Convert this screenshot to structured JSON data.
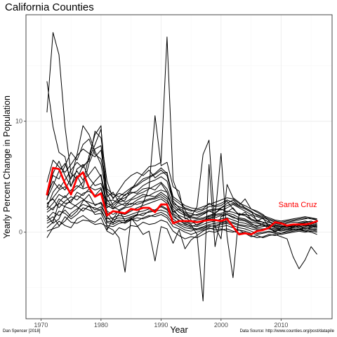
{
  "chart_data": {
    "type": "line",
    "title": "California Counties",
    "xlabel": "Year",
    "ylabel": "Yearly Percent Change in Population",
    "xlim": [
      1967.5,
      2018.5
    ],
    "ylim": [
      -7.8,
      19.6
    ],
    "x_ticks": [
      1970,
      1980,
      1990,
      2000,
      2010
    ],
    "y_ticks": [
      0,
      10
    ],
    "y_tick_labels": [
      "0",
      "10"
    ],
    "grid": true,
    "legend": "none",
    "highlight_color": "#ff0000",
    "other_color": "#000000",
    "highlight": {
      "name": "Santa Cruz",
      "x": [
        1971,
        1972,
        1973,
        1974,
        1975,
        1976,
        1977,
        1978,
        1979,
        1980,
        1981,
        1982,
        1983,
        1984,
        1985,
        1986,
        1987,
        1988,
        1989,
        1990,
        1991,
        1992,
        1993,
        1994,
        1995,
        1996,
        1997,
        1998,
        1999,
        2000,
        2001,
        2002,
        2003,
        2004,
        2005,
        2006,
        2007,
        2008,
        2009,
        2010,
        2011,
        2012,
        2013,
        2014,
        2015,
        2016
      ],
      "values": [
        3.4,
        5.8,
        5.7,
        4.4,
        3.4,
        4.9,
        5.4,
        4.0,
        3.2,
        3.5,
        1.5,
        1.9,
        1.8,
        1.7,
        2.1,
        2.0,
        2.2,
        2.2,
        1.8,
        2.5,
        2.5,
        0.8,
        1.0,
        1.0,
        1.0,
        0.9,
        1.0,
        1.1,
        1.1,
        1.0,
        1.2,
        0.5,
        -0.2,
        -0.1,
        -0.2,
        0.1,
        0.2,
        0.4,
        0.9,
        0.8,
        0.6,
        0.7,
        0.7,
        0.7,
        0.8,
        1.0
      ]
    },
    "series": [
      {
        "values": [
          13.6,
          9.5,
          7.2,
          6.8,
          4.2,
          5.1,
          4.0,
          6.2,
          7.5,
          7.8,
          3.0,
          2.1,
          2.8,
          3.4,
          3.6,
          3.5,
          3.9,
          4.0,
          3.8,
          4.4,
          3.6,
          1.8,
          2.1,
          1.6,
          1.4,
          1.3,
          1.6,
          1.9,
          1.7,
          2.1,
          1.8,
          2.2,
          1.5,
          1.8,
          1.2,
          1.0,
          0.9,
          0.7,
          0.6,
          0.5,
          0.6,
          0.5,
          0.7,
          0.9,
          0.8,
          0.7
        ]
      },
      {
        "values": [
          10.8,
          18.0,
          16.0,
          9.5,
          5.3,
          4.8,
          6.0,
          6.4,
          9.1,
          8.5,
          4.6,
          3.0,
          3.8,
          4.6,
          5.1,
          5.4,
          5.1,
          5.6,
          4.9,
          5.3,
          5.4,
          2.6,
          2.3,
          2.1,
          1.9,
          2.0,
          2.1,
          2.6,
          2.3,
          2.4,
          2.8,
          2.1,
          1.6,
          1.6,
          1.5,
          1.1,
          0.9,
          0.7,
          0.4,
          0.2,
          0.3,
          0.3,
          0.2,
          0.4,
          0.4,
          0.6
        ]
      },
      {
        "values": [
          3.0,
          4.2,
          5.5,
          6.2,
          4.8,
          7.0,
          9.6,
          8.8,
          7.3,
          6.1,
          3.2,
          3.6,
          2.7,
          2.9,
          3.8,
          4.6,
          5.3,
          5.9,
          6.0,
          6.3,
          17.6,
          4.7,
          3.2,
          2.0,
          1.1,
          0.6,
          0.9,
          1.5,
          1.7,
          2.2,
          2.6,
          2.9,
          2.4,
          3.0,
          2.1,
          1.9,
          1.6,
          1.0,
          0.5,
          0.4,
          0.6,
          0.7,
          0.8,
          0.9,
          1.0,
          0.8
        ]
      },
      {
        "values": [
          2.5,
          3.1,
          3.8,
          4.1,
          3.5,
          4.0,
          4.5,
          6.9,
          8.8,
          9.6,
          0.2,
          1.2,
          2.0,
          1.0,
          1.1,
          1.6,
          2.6,
          4.0,
          10.5,
          6.0,
          6.3,
          4.1,
          3.7,
          1.2,
          1.4,
          2.3,
          7.0,
          8.3,
          0.5,
          -0.6,
          4.3,
          3.1,
          2.7,
          2.2,
          1.9,
          1.0,
          1.3,
          0.4,
          0.0,
          0.4,
          0.5,
          0.4,
          0.6,
          0.3,
          0.5,
          0.4
        ]
      },
      {
        "values": [
          2.0,
          2.6,
          3.4,
          3.1,
          3.8,
          4.2,
          3.9,
          4.1,
          3.8,
          4.0,
          2.4,
          2.1,
          2.4,
          2.6,
          2.5,
          2.9,
          3.2,
          3.3,
          3.6,
          3.8,
          3.6,
          2.1,
          1.4,
          0.9,
          0.7,
          -0.2,
          -6.2,
          6.1,
          -1.3,
          1.4,
          1.6,
          1.3,
          1.2,
          1.1,
          0.8,
          0.5,
          0.8,
          0.9,
          0.7,
          0.6,
          0.5,
          0.5,
          0.7,
          0.6,
          0.6,
          0.5
        ]
      },
      {
        "values": [
          1.2,
          1.8,
          1.5,
          2.0,
          1.4,
          1.9,
          2.8,
          3.4,
          2.4,
          2.7,
          1.8,
          1.1,
          1.3,
          1.2,
          1.4,
          1.6,
          1.5,
          1.9,
          2.0,
          2.4,
          2.1,
          1.6,
          1.0,
          0.8,
          0.5,
          0.7,
          0.9,
          1.3,
          1.4,
          7.1,
          -0.4,
          -4.1,
          1.7,
          1.5,
          1.1,
          0.9,
          0.7,
          0.3,
          0.1,
          0.2,
          0.3,
          0.2,
          0.3,
          0.1,
          0.0,
          -0.2
        ]
      },
      {
        "values": [
          0.1,
          0.3,
          0.5,
          1.4,
          0.9,
          0.8,
          1.1,
          1.0,
          0.7,
          0.8,
          0.5,
          0.2,
          -0.5,
          -3.6,
          1.3,
          0.6,
          -0.2,
          0.1,
          -2.6,
          0.5,
          0.3,
          -1.0,
          0.2,
          -1.5,
          -0.7,
          -0.3,
          0.1,
          0.4,
          0.2,
          0.3,
          0.1,
          0.0,
          0.2,
          -0.1,
          -0.4,
          -0.3,
          -0.5,
          -0.3,
          -0.2,
          -0.4,
          -0.6,
          -2.2,
          -3.3,
          -2.5,
          -1.3,
          -2.0
        ]
      },
      {
        "values": [
          2.9,
          5.3,
          6.4,
          5.1,
          4.1,
          5.7,
          6.1,
          4.9,
          4.2,
          4.4,
          2.8,
          2.9,
          2.6,
          2.4,
          2.9,
          3.1,
          3.4,
          3.3,
          3.2,
          3.6,
          3.2,
          2.3,
          1.8,
          1.5,
          1.3,
          1.2,
          1.3,
          1.5,
          1.6,
          1.7,
          1.9,
          1.8,
          1.6,
          1.5,
          1.2,
          1.0,
          0.9,
          0.7,
          0.6,
          0.5,
          0.5,
          0.6,
          0.7,
          0.8,
          0.7,
          0.6
        ]
      },
      {
        "values": [
          1.8,
          2.2,
          2.6,
          2.3,
          2.1,
          2.5,
          2.9,
          2.7,
          2.5,
          2.6,
          1.2,
          1.3,
          1.5,
          1.4,
          1.6,
          1.8,
          1.9,
          2.1,
          2.0,
          2.3,
          2.0,
          1.2,
          0.8,
          0.6,
          0.4,
          0.3,
          0.5,
          0.7,
          0.8,
          0.9,
          1.0,
          0.9,
          0.7,
          0.6,
          0.5,
          0.3,
          0.3,
          0.4,
          0.3,
          0.2,
          0.3,
          0.4,
          0.5,
          0.6,
          0.5,
          0.4
        ]
      },
      {
        "values": [
          -0.5,
          0.4,
          1.0,
          0.6,
          0.4,
          1.2,
          1.5,
          1.1,
          0.9,
          1.3,
          0.1,
          -0.2,
          0.4,
          0.2,
          0.6,
          0.5,
          0.9,
          0.7,
          0.8,
          1.1,
          0.9,
          0.1,
          -0.3,
          -0.6,
          -0.4,
          -0.5,
          -0.2,
          0.1,
          0.0,
          0.2,
          0.3,
          0.1,
          -0.1,
          0.0,
          -0.3,
          -0.5,
          -0.4,
          -0.2,
          -0.3,
          -0.1,
          0.0,
          0.1,
          0.2,
          0.1,
          0.2,
          0.1
        ]
      },
      {
        "values": [
          4.5,
          6.5,
          5.9,
          5.4,
          6.1,
          6.9,
          7.5,
          7.1,
          6.8,
          7.4,
          3.7,
          3.1,
          3.5,
          3.3,
          3.9,
          4.2,
          4.6,
          4.9,
          5.2,
          5.6,
          5.1,
          3.0,
          2.6,
          2.2,
          2.0,
          1.8,
          2.0,
          2.3,
          2.4,
          2.6,
          2.9,
          2.7,
          2.4,
          2.2,
          1.9,
          1.5,
          1.3,
          1.1,
          0.9,
          0.8,
          0.9,
          1.0,
          1.1,
          1.2,
          1.3,
          1.1
        ]
      },
      {
        "values": [
          2.2,
          3.6,
          4.3,
          3.8,
          4.9,
          5.5,
          4.7,
          5.2,
          5.9,
          5.0,
          2.2,
          2.6,
          3.1,
          2.7,
          3.0,
          3.4,
          3.6,
          3.9,
          4.2,
          4.5,
          3.9,
          2.5,
          2.0,
          1.7,
          1.5,
          1.6,
          1.8,
          2.0,
          2.1,
          2.0,
          2.2,
          2.5,
          2.2,
          1.9,
          1.6,
          1.4,
          1.2,
          0.9,
          0.8,
          0.7,
          0.8,
          0.9,
          0.9,
          1.0,
          0.9,
          0.8
        ]
      },
      {
        "values": [
          0.8,
          1.1,
          1.9,
          1.7,
          1.2,
          1.6,
          2.2,
          2.0,
          1.8,
          2.1,
          0.9,
          0.7,
          1.0,
          0.8,
          1.1,
          1.3,
          1.2,
          1.4,
          1.6,
          1.8,
          1.5,
          0.8,
          0.5,
          0.2,
          0.1,
          0.3,
          0.4,
          0.6,
          0.5,
          0.7,
          0.8,
          0.6,
          0.4,
          0.3,
          0.1,
          -0.1,
          0.0,
          0.1,
          0.0,
          -0.1,
          0.1,
          0.2,
          0.3,
          0.2,
          0.3,
          0.2
        ]
      },
      {
        "values": [
          3.3,
          4.6,
          3.9,
          4.7,
          5.6,
          6.3,
          5.8,
          6.6,
          7.9,
          9.3,
          3.5,
          2.4,
          2.9,
          3.1,
          3.5,
          3.7,
          4.2,
          4.5,
          4.7,
          5.0,
          4.6,
          2.8,
          2.2,
          1.8,
          1.7,
          1.5,
          1.7,
          1.9,
          2.0,
          2.2,
          2.4,
          2.6,
          2.3,
          2.1,
          1.8,
          1.6,
          1.4,
          1.2,
          1.0,
          0.9,
          1.0,
          1.1,
          1.2,
          1.3,
          1.2,
          1.1
        ]
      },
      {
        "values": [
          1.5,
          0.8,
          1.2,
          2.4,
          2.9,
          3.3,
          3.0,
          2.5,
          2.0,
          2.3,
          1.4,
          0.8,
          1.7,
          1.6,
          1.9,
          2.2,
          2.4,
          2.6,
          2.8,
          3.0,
          2.6,
          1.4,
          1.1,
          0.7,
          0.6,
          0.5,
          0.7,
          0.9,
          1.0,
          1.2,
          1.3,
          1.1,
          0.9,
          0.8,
          0.6,
          0.4,
          0.5,
          0.6,
          0.4,
          0.3,
          0.4,
          0.5,
          0.4,
          0.5,
          0.6,
          0.5
        ]
      },
      {
        "values": [
          2.6,
          3.0,
          2.2,
          2.8,
          3.2,
          2.9,
          3.5,
          3.7,
          3.3,
          3.9,
          1.9,
          1.6,
          1.9,
          2.2,
          2.3,
          2.7,
          2.8,
          3.0,
          3.1,
          3.4,
          3.0,
          1.7,
          1.3,
          1.0,
          0.8,
          0.9,
          1.1,
          1.2,
          1.3,
          1.5,
          1.6,
          1.4,
          1.1,
          1.0,
          0.7,
          0.6,
          0.6,
          0.5,
          0.5,
          0.4,
          0.5,
          0.6,
          0.6,
          0.7,
          0.6,
          0.5
        ]
      },
      {
        "values": [
          0.4,
          0.9,
          2.7,
          3.3,
          2.6,
          2.3,
          1.9,
          2.4,
          1.6,
          1.7,
          0.6,
          0.5,
          0.8,
          0.9,
          1.2,
          1.0,
          1.3,
          1.5,
          1.4,
          1.6,
          1.3,
          0.5,
          0.3,
          0.0,
          -0.2,
          0.0,
          0.2,
          0.3,
          0.4,
          0.5,
          0.6,
          0.4,
          0.2,
          0.1,
          -0.1,
          -0.2,
          -0.1,
          0.0,
          -0.1,
          -0.2,
          -0.1,
          0.0,
          0.1,
          0.0,
          0.1,
          0.0
        ]
      },
      {
        "values": [
          3.7,
          5.1,
          4.8,
          6.0,
          7.2,
          6.5,
          7.9,
          8.4,
          7.0,
          6.6,
          3.9,
          3.4,
          3.2,
          3.6,
          4.0,
          4.3,
          4.8,
          5.0,
          5.3,
          5.8,
          5.3,
          3.2,
          2.8,
          2.4,
          2.2,
          2.1,
          2.3,
          2.5,
          2.7,
          2.9,
          3.1,
          3.0,
          2.6,
          2.4,
          2.1,
          1.8,
          1.5,
          1.3,
          1.1,
          1.0,
          1.1,
          1.2,
          1.3,
          1.4,
          1.3,
          1.2
        ]
      },
      {
        "values": [
          1.0,
          1.4,
          0.6,
          1.0,
          1.7,
          2.1,
          2.5,
          2.3,
          2.2,
          1.9,
          1.0,
          0.9,
          1.1,
          1.0,
          1.3,
          1.5,
          1.7,
          1.8,
          1.9,
          2.0,
          1.8,
          1.0,
          0.7,
          0.4,
          0.3,
          0.2,
          0.3,
          0.5,
          0.6,
          0.8,
          0.9,
          0.8,
          0.6,
          0.5,
          0.3,
          0.2,
          0.2,
          0.3,
          0.2,
          0.1,
          0.2,
          0.3,
          0.3,
          0.4,
          0.3,
          0.3
        ]
      },
      {
        "values": [
          2.4,
          2.0,
          3.0,
          2.6,
          2.7,
          3.6,
          3.3,
          3.9,
          4.6,
          5.2,
          2.6,
          2.3,
          2.0,
          2.3,
          2.6,
          2.5,
          2.7,
          2.9,
          3.0,
          3.2,
          2.8,
          1.9,
          1.5,
          1.3,
          1.0,
          1.1,
          1.2,
          1.4,
          1.5,
          1.6,
          1.7,
          1.6,
          1.3,
          1.2,
          0.9,
          0.8,
          0.7,
          0.6,
          0.6,
          0.5,
          0.6,
          0.7,
          0.8,
          0.8,
          0.7,
          0.6
        ]
      }
    ],
    "caption_left": "Dan Spencer [2018]",
    "caption_right": "Data Source: http://www.counties.org/post/datapile"
  }
}
